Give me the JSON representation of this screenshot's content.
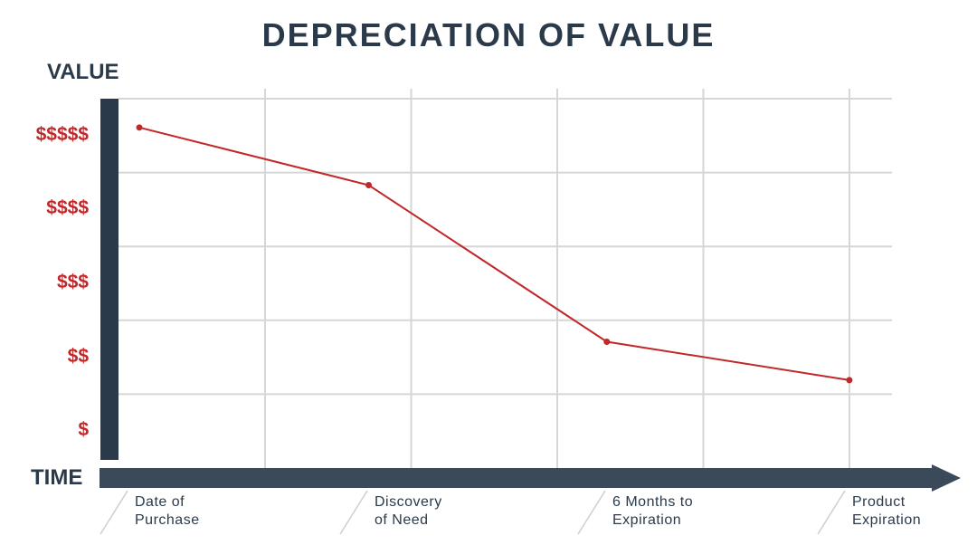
{
  "colors": {
    "navy": "#2b3a4a",
    "arrow": "#3a4a5a",
    "line": "#c0282a",
    "dollar": "#c0282a",
    "grid": "#d6d6d6",
    "separator": "#cfcfcf"
  },
  "chart_data": {
    "type": "line",
    "title": "DEPRECIATION OF VALUE",
    "ylabel": "VALUE",
    "xlabel": "TIME",
    "y_ticks": [
      "$$$$$",
      "$$$$",
      "$$$",
      "$$",
      "$"
    ],
    "x_categories": [
      [
        "Date of",
        "Purchase"
      ],
      [
        "Discovery",
        "of Need"
      ],
      [
        "6 Months to",
        "Expiration"
      ],
      [
        "Product",
        "Expiration"
      ]
    ],
    "ylim": [
      0,
      5
    ],
    "grid": true,
    "series": [
      {
        "points": [
          {
            "x": 0.0,
            "y": 4.61
          },
          {
            "x": 1.57,
            "y": 3.83
          },
          {
            "x": 3.2,
            "y": 1.71
          },
          {
            "x": 4.86,
            "y": 1.19
          }
        ]
      }
    ]
  }
}
